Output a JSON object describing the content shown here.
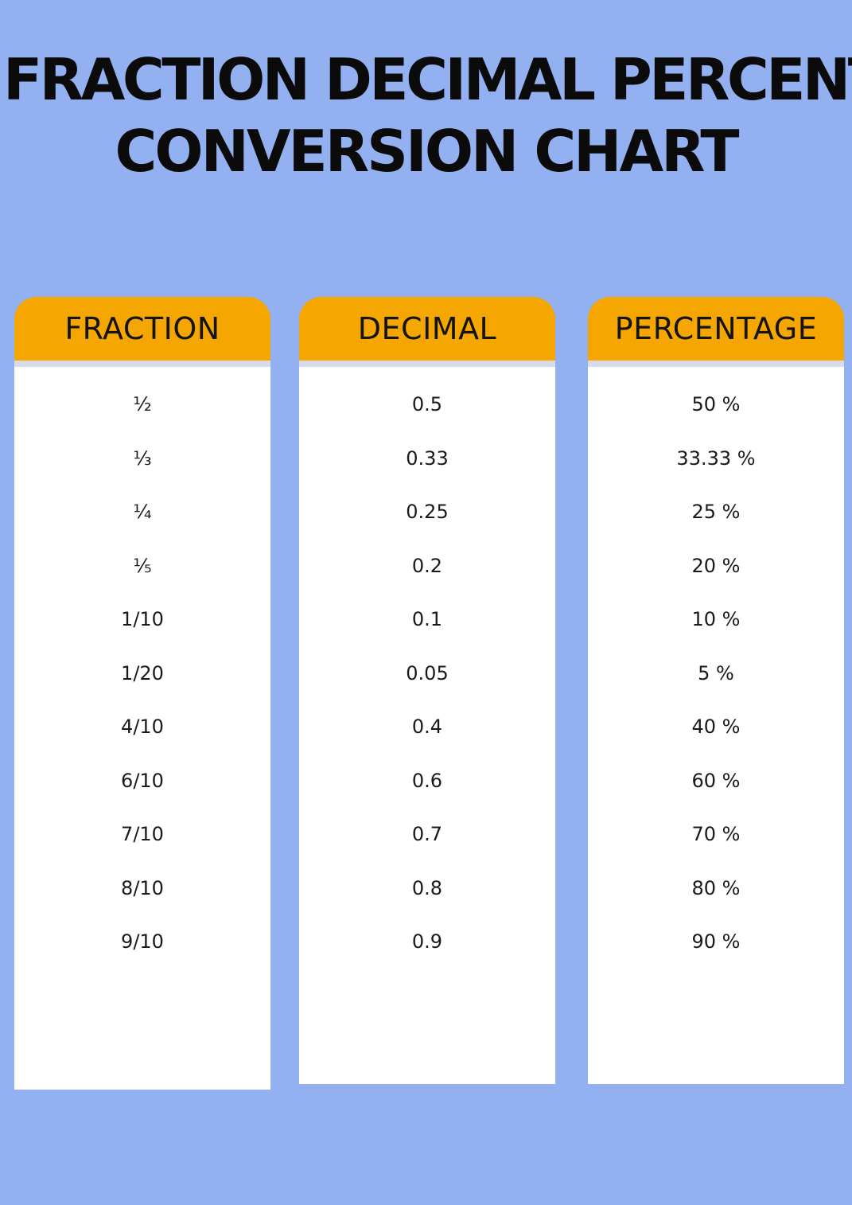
{
  "title": {
    "line1": "FRACTION DECIMAL PERCENT",
    "line2": "CONVERSION CHART"
  },
  "colors": {
    "background": "#93b1f1",
    "header": "#f5a600",
    "panel": "#ffffff"
  },
  "columns": [
    {
      "header": "FRACTION",
      "rows": [
        "½",
        "⅓",
        "¼",
        "⅕",
        "1/10",
        "1/20",
        "4/10",
        "6/10",
        "7/10",
        "8/10",
        "9/10"
      ]
    },
    {
      "header": "DECIMAL",
      "rows": [
        "0.5",
        "0.33",
        "0.25",
        "0.2",
        "0.1",
        "0.05",
        "0.4",
        "0.6",
        "0.7",
        "0.8",
        "0.9"
      ]
    },
    {
      "header": "PERCENTAGE",
      "rows": [
        "50 %",
        "33.33 %",
        "25 %",
        "20 %",
        "10 %",
        "5 %",
        "40 %",
        "60 %",
        "70 %",
        "80 %",
        "90 %"
      ]
    }
  ]
}
